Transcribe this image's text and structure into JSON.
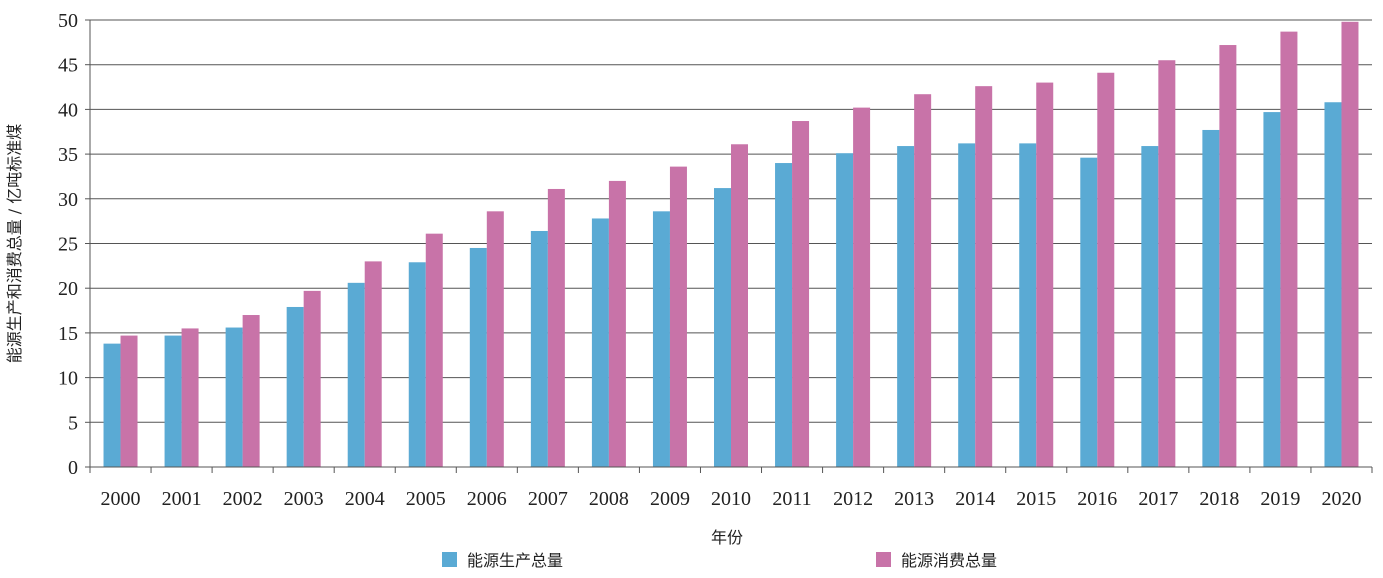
{
  "chart_data": {
    "type": "bar",
    "title": "",
    "xlabel": "年份",
    "ylabel": "能源生产和消费总量 / 亿吨标准煤",
    "ylim": [
      0,
      50
    ],
    "yticks": [
      0,
      5,
      10,
      15,
      20,
      25,
      30,
      35,
      40,
      45,
      50
    ],
    "grid": true,
    "legend_position": "bottom",
    "categories": [
      "2000",
      "2001",
      "2002",
      "2003",
      "2004",
      "2005",
      "2006",
      "2007",
      "2008",
      "2009",
      "2010",
      "2011",
      "2012",
      "2013",
      "2014",
      "2015",
      "2016",
      "2017",
      "2018",
      "2019",
      "2020"
    ],
    "series": [
      {
        "name": "能源生产总量",
        "color": "#5aaad4",
        "values": [
          13.8,
          14.7,
          15.6,
          17.9,
          20.6,
          22.9,
          24.5,
          26.4,
          27.8,
          28.6,
          31.2,
          34.0,
          35.1,
          35.9,
          36.2,
          36.2,
          34.6,
          35.9,
          37.7,
          39.7,
          40.8
        ]
      },
      {
        "name": "能源消费总量",
        "color": "#c873a8",
        "values": [
          14.7,
          15.5,
          17.0,
          19.7,
          23.0,
          26.1,
          28.6,
          31.1,
          32.0,
          33.6,
          36.1,
          38.7,
          40.2,
          41.7,
          42.6,
          43.0,
          44.1,
          45.5,
          47.2,
          48.7,
          49.8
        ]
      }
    ]
  }
}
